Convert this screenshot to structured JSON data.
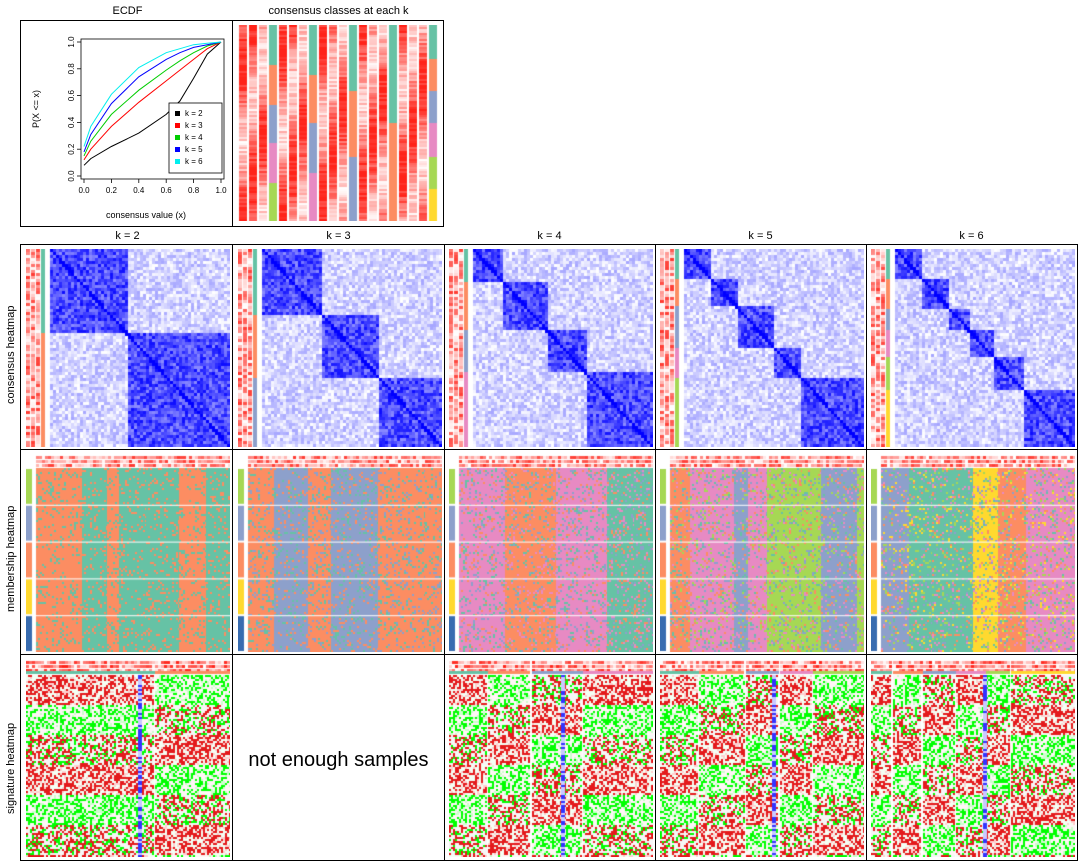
{
  "ecdf": {
    "title": "ECDF",
    "xlabel": "consensus value (x)",
    "ylabel": "P(X <= x)",
    "x_ticks": [
      "0.0",
      "0.2",
      "0.4",
      "0.6",
      "0.8",
      "1.0"
    ],
    "y_ticks": [
      "0.0",
      "0.2",
      "0.4",
      "0.6",
      "0.8",
      "1.0"
    ]
  },
  "classes_title": "consensus classes at each k",
  "k_titles": [
    "k = 2",
    "k = 3",
    "k = 4",
    "k = 5",
    "k = 6"
  ],
  "row_labels": [
    "consensus heatmap",
    "membership heatmap",
    "signature heatmap"
  ],
  "not_enough_msg": "not enough samples",
  "colors": {
    "k2": "#000000",
    "k3": "#ff0000",
    "k4": "#00cd00",
    "k5": "#0000ff",
    "k6": "#00eeee",
    "class_teal": "#66c2a5",
    "class_orange": "#fc8d62",
    "class_purple": "#8da0cb",
    "class_pink": "#e78ac3",
    "class_green": "#a6d854",
    "class_yellow": "#ffd92f",
    "consensus_blue": "#0000ff",
    "sig_red": "#e41a1c",
    "sig_green": "#00ff00"
  },
  "chart_data": [
    {
      "type": "line",
      "title": "ECDF",
      "xlabel": "consensus value (x)",
      "ylabel": "P(X <= x)",
      "xlim": [
        0,
        1
      ],
      "ylim": [
        0,
        1
      ],
      "legend_position": "bottom-right",
      "series": [
        {
          "name": "k = 2",
          "x": [
            0,
            0.05,
            0.2,
            0.4,
            0.6,
            0.7,
            0.8,
            0.9,
            1.0
          ],
          "y": [
            0.08,
            0.13,
            0.22,
            0.32,
            0.46,
            0.56,
            0.73,
            0.91,
            1.0
          ]
        },
        {
          "name": "k = 3",
          "x": [
            0,
            0.05,
            0.2,
            0.4,
            0.6,
            0.7,
            0.8,
            0.9,
            1.0
          ],
          "y": [
            0.12,
            0.2,
            0.37,
            0.55,
            0.71,
            0.79,
            0.87,
            0.95,
            1.0
          ]
        },
        {
          "name": "k = 4",
          "x": [
            0,
            0.05,
            0.2,
            0.4,
            0.6,
            0.7,
            0.8,
            0.9,
            1.0
          ],
          "y": [
            0.15,
            0.26,
            0.46,
            0.64,
            0.79,
            0.86,
            0.92,
            0.97,
            1.0
          ]
        },
        {
          "name": "k = 5",
          "x": [
            0,
            0.05,
            0.2,
            0.4,
            0.6,
            0.7,
            0.8,
            0.9,
            1.0
          ],
          "y": [
            0.18,
            0.31,
            0.54,
            0.74,
            0.87,
            0.92,
            0.96,
            0.98,
            1.0
          ]
        },
        {
          "name": "k = 6",
          "x": [
            0,
            0.05,
            0.2,
            0.4,
            0.6,
            0.7,
            0.8,
            0.9,
            1.0
          ],
          "y": [
            0.22,
            0.37,
            0.61,
            0.81,
            0.92,
            0.95,
            0.98,
            0.99,
            1.0
          ]
        }
      ]
    },
    {
      "type": "heatmap",
      "title": "consensus classes at each k",
      "categories": [
        "k = 2",
        "k = 3",
        "k = 4",
        "k = 5",
        "k = 6"
      ]
    },
    {
      "type": "heatmap",
      "title": "consensus heatmap",
      "categories": [
        "k = 2",
        "k = 3",
        "k = 4",
        "k = 5",
        "k = 6"
      ]
    },
    {
      "type": "heatmap",
      "title": "membership heatmap",
      "categories": [
        "k = 2",
        "k = 3",
        "k = 4",
        "k = 5",
        "k = 6"
      ]
    },
    {
      "type": "heatmap",
      "title": "signature heatmap",
      "categories": [
        "k = 2",
        "k = 4",
        "k = 5",
        "k = 6"
      ]
    }
  ]
}
